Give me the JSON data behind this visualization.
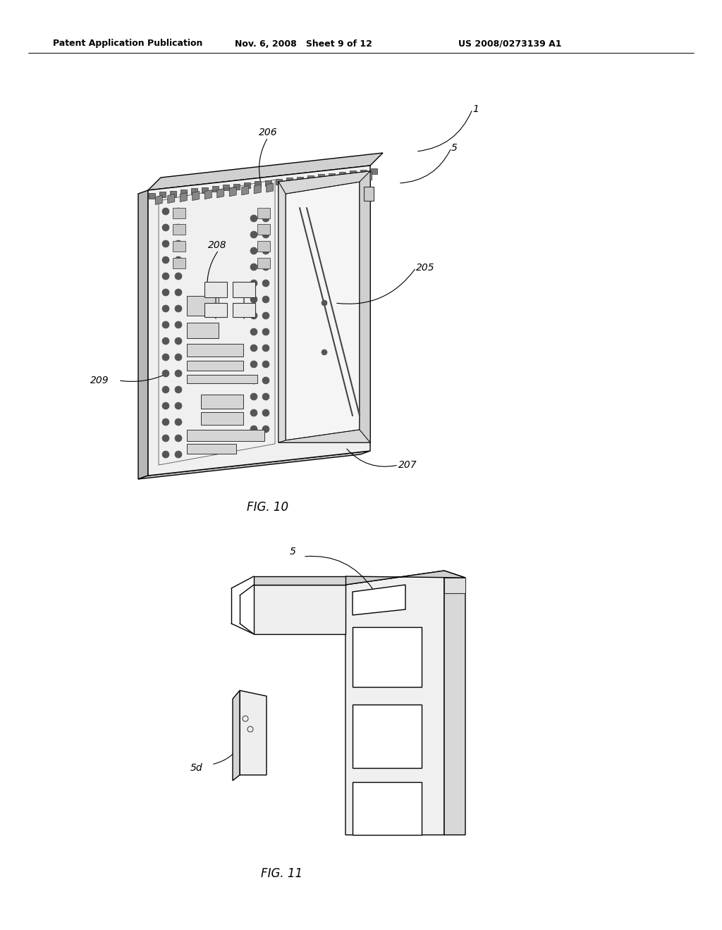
{
  "background_color": "#ffffff",
  "header_left": "Patent Application Publication",
  "header_mid": "Nov. 6, 2008   Sheet 9 of 12",
  "header_right": "US 2008/0273139 A1",
  "fig10_label": "FIG. 10",
  "fig11_label": "FIG. 11",
  "line_color": "#000000",
  "lw_main": 1.0,
  "lw_thick": 1.6,
  "lw_thin": 0.6,
  "label_fontsize": 10,
  "header_fontsize": 9,
  "caption_fontsize": 12
}
